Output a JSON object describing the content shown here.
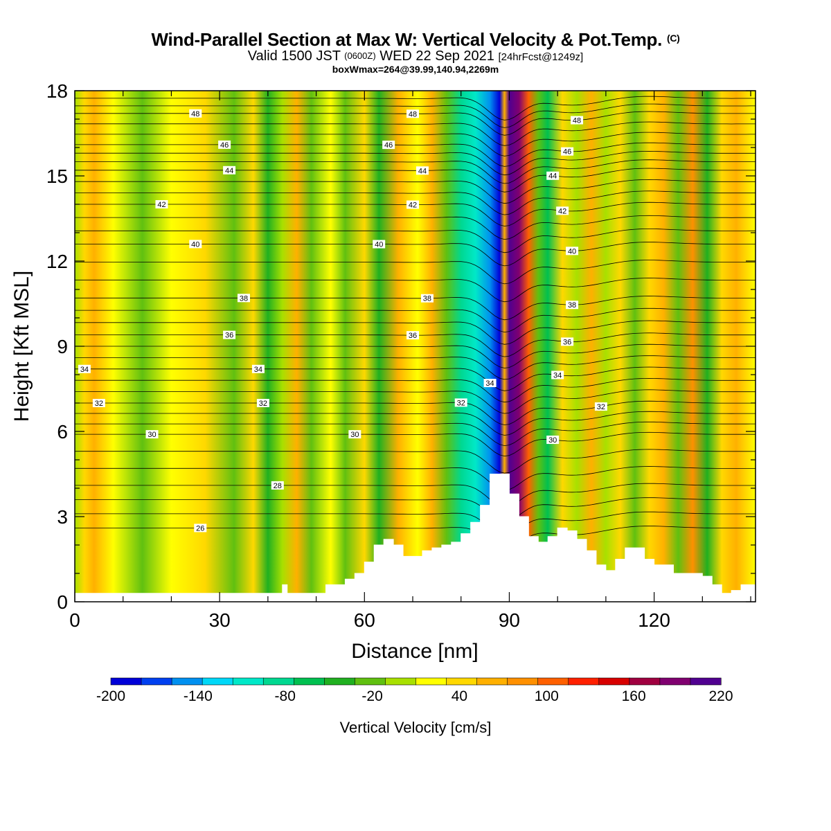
{
  "title": {
    "main": "Wind-Parallel Section at Max W: Vertical Velocity & Pot.Temp.",
    "mark": "(C)",
    "valid_prefix": "Valid 1500 JST",
    "valid_utc": "(0600Z)",
    "valid_date": "WED 22 Sep 2021",
    "forecast": "[24hrFcst@1249z]",
    "box": "boxWmax=264@39.99,140.94,2269m"
  },
  "chart_data": {
    "type": "heatmap",
    "xlabel": "Distance [nm]",
    "ylabel": "Height [Kft MSL]",
    "xlim": [
      0,
      141
    ],
    "ylim": [
      0,
      18
    ],
    "xticks": [
      0,
      30,
      60,
      90,
      120
    ],
    "yticks": [
      0,
      3,
      6,
      9,
      12,
      15,
      18
    ],
    "colorbar": {
      "label": "Vertical Velocity [cm/s]",
      "min": -200,
      "max": 220,
      "step": 20,
      "tick_labels": [
        -200,
        -140,
        -80,
        -20,
        40,
        100,
        160,
        220
      ],
      "colors": [
        "#0000d8",
        "#0040f0",
        "#0090f0",
        "#00d8f8",
        "#00e8c8",
        "#00d890",
        "#00c050",
        "#20b020",
        "#60c010",
        "#a8e000",
        "#ffff00",
        "#ffd800",
        "#ffb000",
        "#ff9000",
        "#ff6000",
        "#ff2000",
        "#d80000",
        "#a00040",
        "#800070",
        "#500090"
      ]
    },
    "series": [
      {
        "name": "Vertical Velocity",
        "units": "cm/s",
        "max": 264,
        "max_location": [
          39.99,
          140.94
        ],
        "max_height_m": 2269
      }
    ],
    "terrain_profile": {
      "x": [
        0,
        10,
        20,
        30,
        40,
        43,
        44,
        48,
        52,
        56,
        58,
        60,
        62,
        64,
        66,
        68,
        70,
        72,
        74,
        76,
        78,
        80,
        82,
        84,
        86,
        88,
        90,
        92,
        94,
        96,
        98,
        100,
        102,
        104,
        106,
        108,
        110,
        112,
        114,
        116,
        118,
        120,
        122,
        124,
        126,
        128,
        130,
        132,
        134,
        136,
        138,
        141
      ],
      "y": [
        0.3,
        0.3,
        0.3,
        0.3,
        0.3,
        0.6,
        0.3,
        0.3,
        0.6,
        0.8,
        1.0,
        1.4,
        2.0,
        2.2,
        2.0,
        1.6,
        1.6,
        1.8,
        1.9,
        2.0,
        2.1,
        2.4,
        2.8,
        3.4,
        4.5,
        4.5,
        3.8,
        3.0,
        2.3,
        2.1,
        2.3,
        2.6,
        2.5,
        2.2,
        1.8,
        1.3,
        1.1,
        1.5,
        1.9,
        1.9,
        1.5,
        1.3,
        1.3,
        1.0,
        1.0,
        1.0,
        0.9,
        0.6,
        0.3,
        0.4,
        0.6,
        0.9
      ]
    },
    "theta_contours": [
      {
        "value": 26,
        "base": 2.6,
        "label": "26",
        "label_x": 26
      },
      {
        "value": 28,
        "base": 4.1,
        "label": "28",
        "label_x": 42
      },
      {
        "value": 30,
        "base": 5.9,
        "label": "30",
        "label_x": 16
      },
      {
        "value": 30,
        "base": 5.9,
        "label": "30",
        "label_x": 58
      },
      {
        "value": 30,
        "base": 5.9,
        "label": "30",
        "label_x": 99
      },
      {
        "value": 32,
        "base": 7.0,
        "label": "32",
        "label_x": 5
      },
      {
        "value": 32,
        "base": 7.0,
        "label": "32",
        "label_x": 39
      },
      {
        "value": 32,
        "base": 7.0,
        "label": "32",
        "label_x": 80
      },
      {
        "value": 32,
        "base": 7.0,
        "label": "32",
        "label_x": 109
      },
      {
        "value": 34,
        "base": 8.2,
        "label": "34",
        "label_x": 2
      },
      {
        "value": 34,
        "base": 8.2,
        "label": "34",
        "label_x": 38
      },
      {
        "value": 34,
        "base": 8.2,
        "label": "34",
        "label_x": 86
      },
      {
        "value": 34,
        "base": 8.2,
        "label": "34",
        "label_x": 100
      },
      {
        "value": 36,
        "base": 9.4,
        "label": "36",
        "label_x": 32
      },
      {
        "value": 36,
        "base": 9.4,
        "label": "36",
        "label_x": 70
      },
      {
        "value": 36,
        "base": 9.4,
        "label": "36",
        "label_x": 102
      },
      {
        "value": 38,
        "base": 10.7,
        "label": "38",
        "label_x": 35
      },
      {
        "value": 38,
        "base": 10.7,
        "label": "38",
        "label_x": 73
      },
      {
        "value": 38,
        "base": 10.7,
        "label": "38",
        "label_x": 103
      },
      {
        "value": 40,
        "base": 12.6,
        "label": "40",
        "label_x": 25
      },
      {
        "value": 40,
        "base": 12.6,
        "label": "40",
        "label_x": 63
      },
      {
        "value": 40,
        "base": 12.6,
        "label": "40",
        "label_x": 103
      },
      {
        "value": 42,
        "base": 14.0,
        "label": "42",
        "label_x": 18
      },
      {
        "value": 42,
        "base": 14.0,
        "label": "42",
        "label_x": 70
      },
      {
        "value": 42,
        "base": 14.0,
        "label": "42",
        "label_x": 101
      },
      {
        "value": 44,
        "base": 15.2,
        "label": "44",
        "label_x": 32
      },
      {
        "value": 44,
        "base": 15.2,
        "label": "44",
        "label_x": 72
      },
      {
        "value": 44,
        "base": 15.2,
        "label": "44",
        "label_x": 99
      },
      {
        "value": 46,
        "base": 16.1,
        "label": "46",
        "label_x": 31
      },
      {
        "value": 46,
        "base": 16.1,
        "label": "46",
        "label_x": 65
      },
      {
        "value": 46,
        "base": 16.1,
        "label": "46",
        "label_x": 102
      },
      {
        "value": 48,
        "base": 17.2,
        "label": "48",
        "label_x": 25
      },
      {
        "value": 48,
        "base": 17.2,
        "label": "48",
        "label_x": 70
      },
      {
        "value": 48,
        "base": 17.2,
        "label": "48",
        "label_x": 104
      }
    ],
    "velocity_bands": [
      {
        "x": 0,
        "value": -20
      },
      {
        "x": 2,
        "value": 30
      },
      {
        "x": 4,
        "value": 45
      },
      {
        "x": 8,
        "value": 10
      },
      {
        "x": 14,
        "value": -30
      },
      {
        "x": 20,
        "value": 5
      },
      {
        "x": 27,
        "value": 20
      },
      {
        "x": 33,
        "value": -35
      },
      {
        "x": 37,
        "value": 25
      },
      {
        "x": 40,
        "value": -50
      },
      {
        "x": 43,
        "value": -20
      },
      {
        "x": 46,
        "value": 45
      },
      {
        "x": 49,
        "value": -30
      },
      {
        "x": 53,
        "value": 15
      },
      {
        "x": 56,
        "value": -25
      },
      {
        "x": 60,
        "value": 30
      },
      {
        "x": 63,
        "value": -60
      },
      {
        "x": 67,
        "value": 40
      },
      {
        "x": 71,
        "value": 10
      },
      {
        "x": 74,
        "value": 55
      },
      {
        "x": 77,
        "value": -30
      },
      {
        "x": 80,
        "value": -85
      },
      {
        "x": 83,
        "value": -110
      },
      {
        "x": 86,
        "value": -150
      },
      {
        "x": 88,
        "value": -200
      },
      {
        "x": 89,
        "value": 40
      },
      {
        "x": 90,
        "value": 210
      },
      {
        "x": 92,
        "value": 160
      },
      {
        "x": 94,
        "value": 90
      },
      {
        "x": 96,
        "value": -40
      },
      {
        "x": 98,
        "value": -70
      },
      {
        "x": 101,
        "value": 30
      },
      {
        "x": 104,
        "value": -20
      },
      {
        "x": 107,
        "value": 55
      },
      {
        "x": 110,
        "value": -10
      },
      {
        "x": 113,
        "value": 30
      },
      {
        "x": 116,
        "value": -40
      },
      {
        "x": 119,
        "value": 20
      },
      {
        "x": 122,
        "value": 55
      },
      {
        "x": 125,
        "value": -30
      },
      {
        "x": 128,
        "value": 60
      },
      {
        "x": 131,
        "value": -60
      },
      {
        "x": 134,
        "value": 20
      },
      {
        "x": 137,
        "value": 50
      },
      {
        "x": 141,
        "value": 10
      }
    ]
  }
}
